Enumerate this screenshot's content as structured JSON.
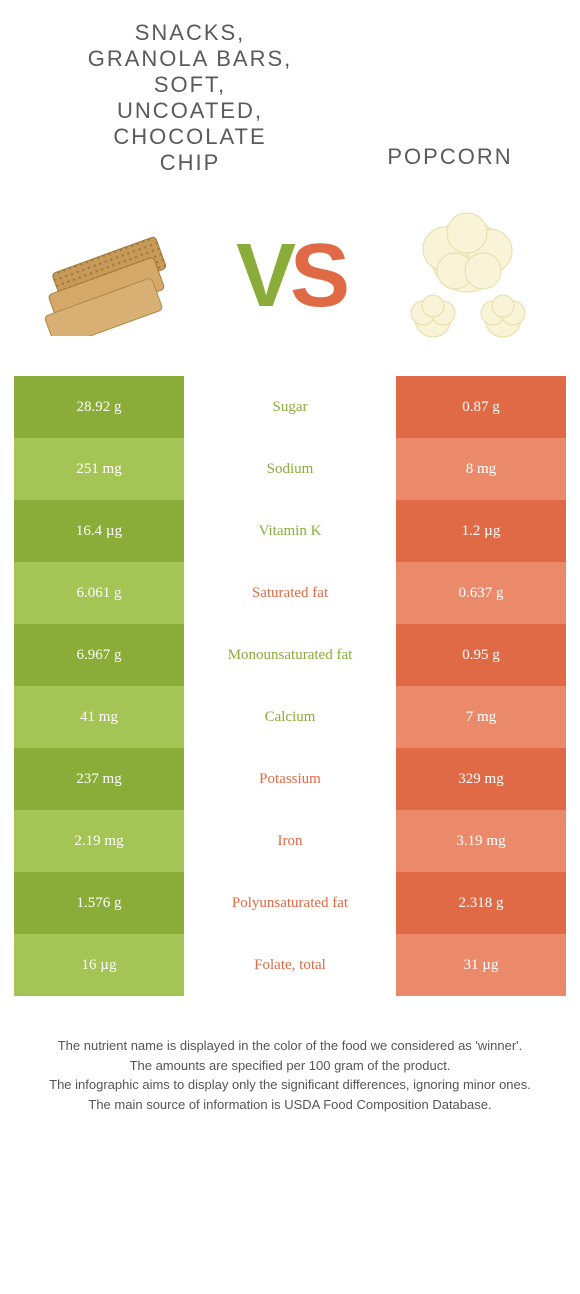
{
  "food1": {
    "title": "SNACKS, GRANOLA BARS, SOFT, UNCOATED, CHOCOLATE CHIP"
  },
  "food2": {
    "title": "POPCORN"
  },
  "vs": {
    "v": "V",
    "s": "S"
  },
  "colors": {
    "green": "#8aad3a",
    "green_light": "#a4c455",
    "orange": "#e06a45",
    "orange_light": "#ea8a6a"
  },
  "rows": [
    {
      "left": "28.92 g",
      "name": "Sugar",
      "winner": "green",
      "right": "0.87 g"
    },
    {
      "left": "251 mg",
      "name": "Sodium",
      "winner": "green",
      "right": "8 mg"
    },
    {
      "left": "16.4 µg",
      "name": "Vitamin K",
      "winner": "green",
      "right": "1.2 µg"
    },
    {
      "left": "6.061 g",
      "name": "Saturated fat",
      "winner": "orange",
      "right": "0.637 g"
    },
    {
      "left": "6.967 g",
      "name": "Monounsaturated fat",
      "winner": "green",
      "right": "0.95 g"
    },
    {
      "left": "41 mg",
      "name": "Calcium",
      "winner": "green",
      "right": "7 mg"
    },
    {
      "left": "237 mg",
      "name": "Potassium",
      "winner": "orange",
      "right": "329 mg"
    },
    {
      "left": "2.19 mg",
      "name": "Iron",
      "winner": "orange",
      "right": "3.19 mg"
    },
    {
      "left": "1.576 g",
      "name": "Polyunsaturated fat",
      "winner": "orange",
      "right": "2.318 g"
    },
    {
      "left": "16 µg",
      "name": "Folate, total",
      "winner": "orange",
      "right": "31 µg"
    }
  ],
  "footer": {
    "l1": "The nutrient name is displayed in the color of the food we considered as 'winner'.",
    "l2": "The amounts are specified per 100 gram of the product.",
    "l3": "The infographic aims to display only the significant differences, ignoring minor ones.",
    "l4": "The main source of information is USDA Food Composition Database."
  }
}
